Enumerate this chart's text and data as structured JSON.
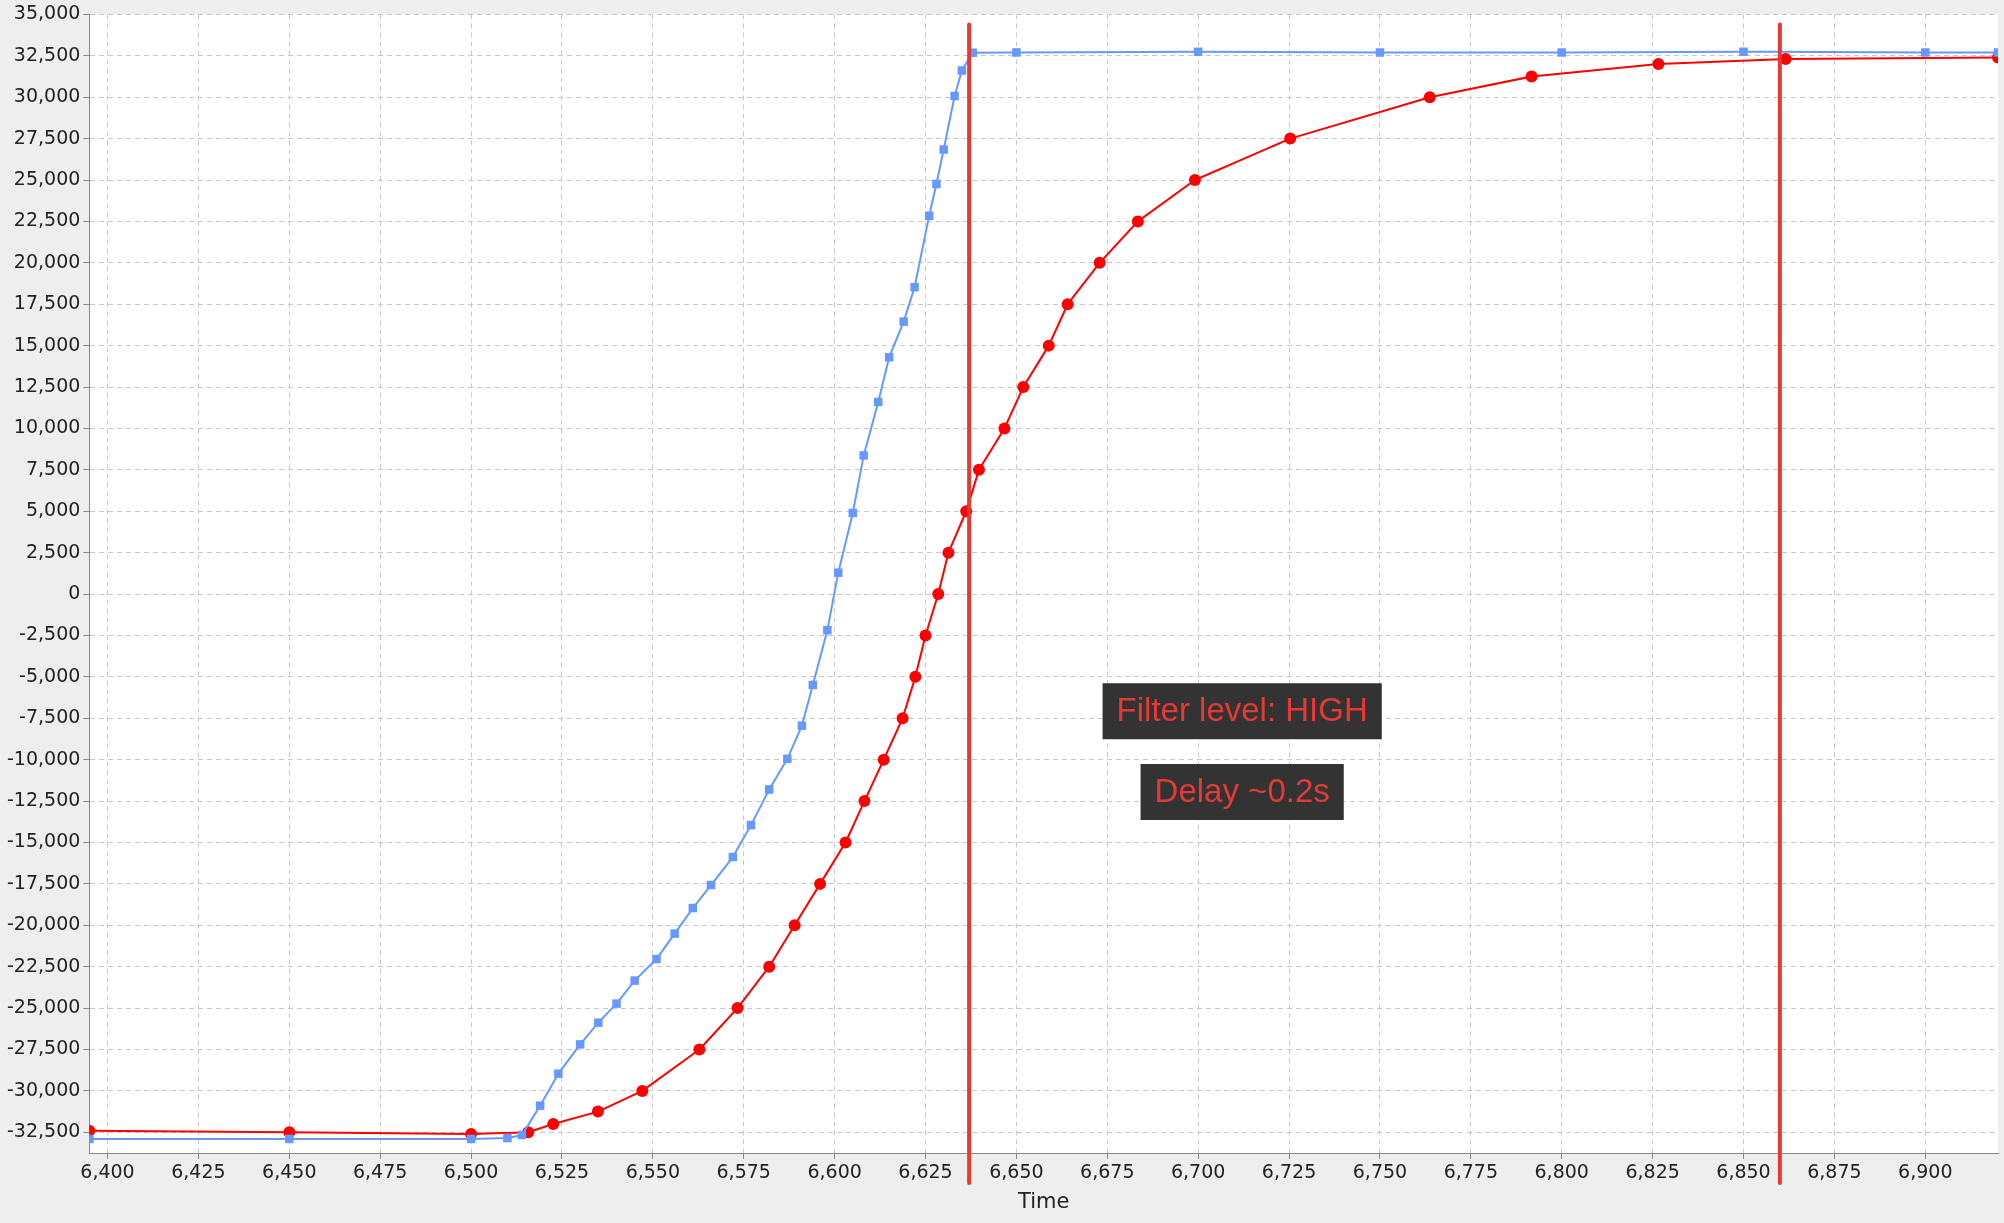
{
  "chart_data": {
    "type": "line",
    "xlabel": "Time",
    "xlim": [
      6395,
      6920
    ],
    "xticks": [
      {
        "value": 6400,
        "label": "6,400"
      },
      {
        "value": 6425,
        "label": "6,425"
      },
      {
        "value": 6450,
        "label": "6,450"
      },
      {
        "value": 6475,
        "label": "6,475"
      },
      {
        "value": 6500,
        "label": "6,500"
      },
      {
        "value": 6525,
        "label": "6,525"
      },
      {
        "value": 6550,
        "label": "6,550"
      },
      {
        "value": 6575,
        "label": "6,575"
      },
      {
        "value": 6600,
        "label": "6,600"
      },
      {
        "value": 6625,
        "label": "6,625"
      },
      {
        "value": 6650,
        "label": "6,650"
      },
      {
        "value": 6675,
        "label": "6,675"
      },
      {
        "value": 6700,
        "label": "6,700"
      },
      {
        "value": 6725,
        "label": "6,725"
      },
      {
        "value": 6750,
        "label": "6,750"
      },
      {
        "value": 6775,
        "label": "6,775"
      },
      {
        "value": 6800,
        "label": "6,800"
      },
      {
        "value": 6825,
        "label": "6,825"
      },
      {
        "value": 6850,
        "label": "6,850"
      },
      {
        "value": 6875,
        "label": "6,875"
      },
      {
        "value": 6900,
        "label": "6,900"
      }
    ],
    "ylim": [
      -33750,
      35000
    ],
    "yticks": [
      {
        "value": -32500,
        "label": "-32,500"
      },
      {
        "value": -30000,
        "label": "-30,000"
      },
      {
        "value": -27500,
        "label": "-27,500"
      },
      {
        "value": -25000,
        "label": "-25,000"
      },
      {
        "value": -22500,
        "label": "-22,500"
      },
      {
        "value": -20000,
        "label": "-20,000"
      },
      {
        "value": -17500,
        "label": "-17,500"
      },
      {
        "value": -15000,
        "label": "-15,000"
      },
      {
        "value": -12500,
        "label": "-12,500"
      },
      {
        "value": -10000,
        "label": "-10,000"
      },
      {
        "value": -7500,
        "label": "-7,500"
      },
      {
        "value": -5000,
        "label": "-5,000"
      },
      {
        "value": -2500,
        "label": "-2,500"
      },
      0,
      {
        "value": 2500,
        "label": "2,500"
      },
      {
        "value": 5000,
        "label": "5,000"
      },
      {
        "value": 7500,
        "label": "7,500"
      },
      {
        "value": 10000,
        "label": "10,000"
      },
      {
        "value": 12500,
        "label": "12,500"
      },
      {
        "value": 15000,
        "label": "15,000"
      },
      {
        "value": 17500,
        "label": "17,500"
      },
      {
        "value": 20000,
        "label": "20,000"
      },
      {
        "value": 22500,
        "label": "22,500"
      },
      {
        "value": 25000,
        "label": "25,000"
      },
      {
        "value": 27500,
        "label": "27,500"
      },
      {
        "value": 30000,
        "label": "30,000"
      },
      {
        "value": 32500,
        "label": "32,500"
      },
      {
        "value": 35000,
        "label": "35,000"
      }
    ],
    "grid": true,
    "legend": false,
    "series": [
      {
        "color": "#ff0000",
        "marker": "circle",
        "x": [
          6395,
          6450,
          6500,
          6515.7,
          6522.6,
          6534.9,
          6547.1,
          6562.8,
          6573.3,
          6582,
          6589,
          6596,
          6603,
          6608.2,
          6613.5,
          6618.7,
          6622.2,
          6625,
          6628.5,
          6631.3,
          6636.2,
          6639.7,
          6646.7,
          6651.9,
          6658.9,
          6664.1,
          6672.9,
          6683.4,
          6699.1,
          6725.3,
          6763.7,
          6791.7,
          6826.6,
          6861.6,
          6920
        ],
        "values": [
          -32400,
          -32500,
          -32600,
          -32500,
          -32000,
          -31250,
          -30000,
          -27500,
          -25000,
          -22500,
          -20000,
          -17500,
          -15000,
          -12500,
          -10000,
          -7500,
          -5000,
          -2500,
          0,
          2500,
          5000,
          7500,
          10000,
          12500,
          15000,
          17500,
          20000,
          22500,
          25000,
          27500,
          30000,
          31250,
          32000,
          32300,
          32400
        ]
      },
      {
        "color": "#6699ff",
        "marker": "square",
        "x": [
          6395,
          6450,
          6500,
          6510,
          6514,
          6519,
          6524,
          6530,
          6535,
          6540,
          6545,
          6551,
          6556,
          6561,
          6566,
          6572,
          6577,
          6582,
          6587,
          6591,
          6594,
          6598,
          6601,
          6605,
          6608,
          6612,
          6615,
          6619,
          6622,
          6626,
          6628,
          6630,
          6633,
          6635,
          6638,
          6650,
          6700,
          6750,
          6800,
          6850,
          6900,
          6920
        ],
        "values": [
          -32900,
          -32900,
          -32900,
          -32850,
          -32660,
          -30890,
          -28960,
          -27190,
          -25880,
          -24730,
          -23340,
          -22040,
          -20500,
          -18960,
          -17570,
          -15880,
          -13950,
          -11800,
          -9950,
          -7950,
          -5490,
          -2180,
          1290,
          4900,
          8370,
          11600,
          14300,
          16450,
          18530,
          22840,
          24760,
          26840,
          30070,
          31610,
          32690,
          32700,
          32750,
          32700,
          32700,
          32750,
          32700,
          32700
        ]
      }
    ],
    "ref_lines": [
      {
        "axis": "x",
        "value": 6637,
        "color": "#e53935"
      },
      {
        "axis": "x",
        "value": 6860,
        "color": "#e53935"
      }
    ],
    "annotations": [
      "Filter level: HIGH",
      "Delay ~0.2s"
    ]
  }
}
